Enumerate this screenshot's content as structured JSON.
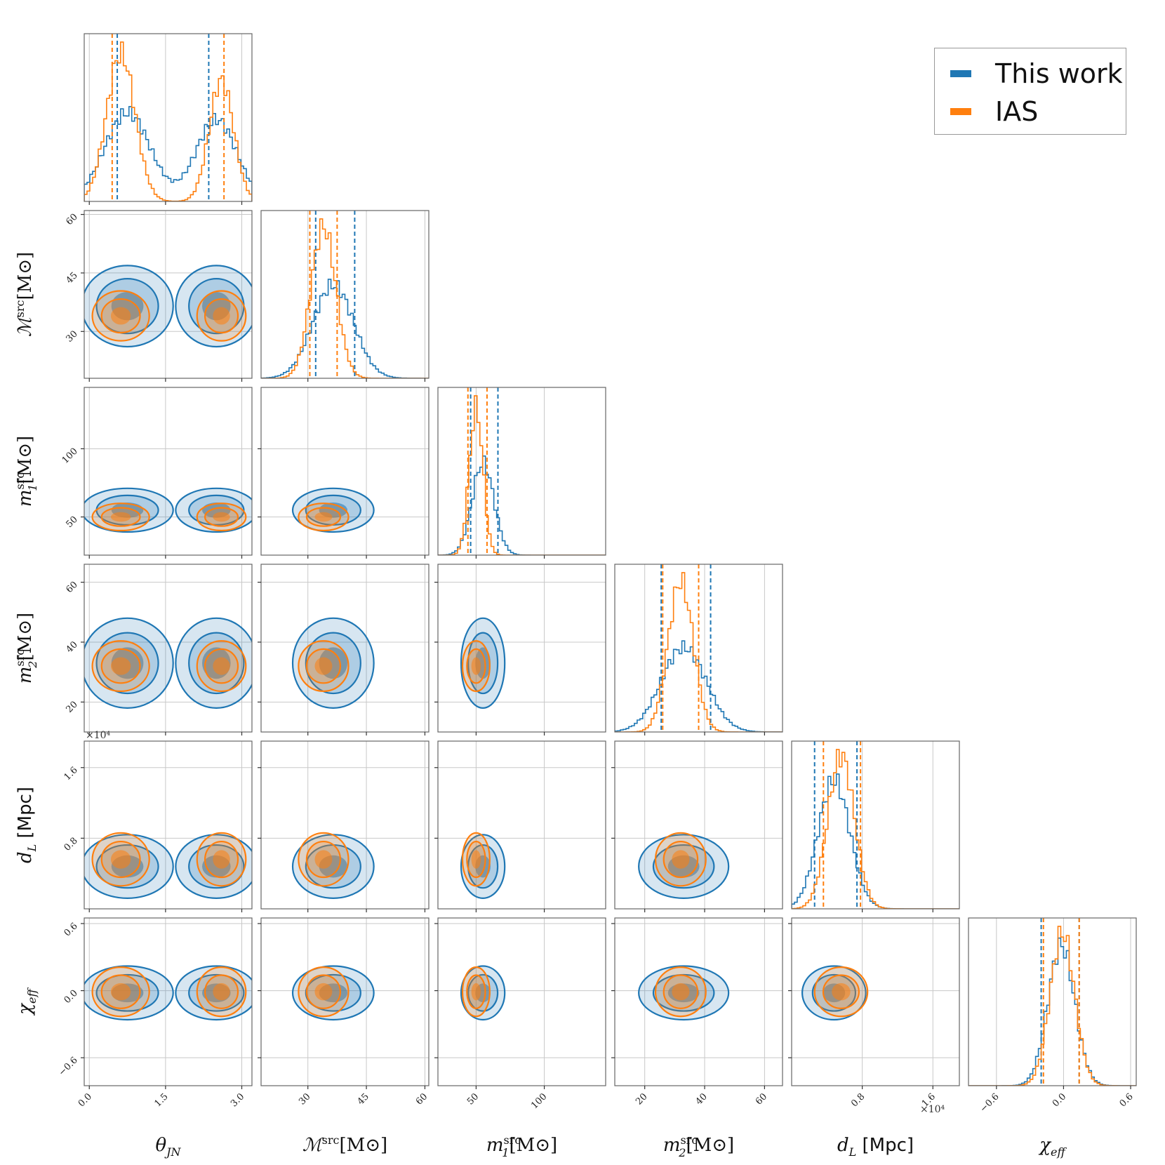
{
  "chart_data": {
    "type": "corner",
    "parameters": [
      {
        "key": "theta",
        "label": "θ",
        "sub": "JN",
        "range": [
          -0.1,
          3.2
        ],
        "ticks": [
          0.0,
          1.5,
          3.0
        ],
        "tick_labels": [
          "0.0",
          "1.5",
          "3.0"
        ]
      },
      {
        "key": "mchirp",
        "label": "ℳ",
        "sup": "src",
        "unit": "[M⊙]",
        "range": [
          18,
          61
        ],
        "ticks": [
          30,
          45,
          60
        ],
        "tick_labels": [
          "30",
          "45",
          "60"
        ]
      },
      {
        "key": "m1",
        "label": "m",
        "sub": "1",
        "sup": "src",
        "unit": "[M⊙]",
        "range": [
          22,
          145
        ],
        "ticks": [
          50,
          100
        ],
        "tick_labels": [
          "50",
          "100"
        ]
      },
      {
        "key": "m2",
        "label": "m",
        "sub": "2",
        "sup": "src",
        "unit": "[M⊙]",
        "range": [
          10,
          66
        ],
        "ticks": [
          20,
          40,
          60
        ],
        "tick_labels": [
          "20",
          "40",
          "60"
        ]
      },
      {
        "key": "dL",
        "label": "d",
        "sub": "L",
        "unit": " [Mpc]",
        "range": [
          0.0,
          1.9
        ],
        "ticks": [
          0.8,
          1.6
        ],
        "tick_labels": [
          "0.8",
          "1.6"
        ],
        "sci": "×10⁴"
      },
      {
        "key": "chi",
        "label": "χ",
        "sub": "eff",
        "range": [
          -0.85,
          0.65
        ],
        "ticks": [
          -0.6,
          0.0,
          0.6
        ],
        "tick_labels": [
          "−0.6",
          "0.0",
          "0.6"
        ]
      }
    ],
    "series": [
      {
        "name": "This work",
        "color": "#1f77b4",
        "quantiles": {
          "theta": [
            0.55,
            2.35
          ],
          "mchirp": [
            32.0,
            42.0
          ],
          "m1": [
            46.0,
            66.0
          ],
          "m2": [
            25.5,
            42.0
          ],
          "dL": [
            0.26,
            0.74
          ],
          "chi": [
            -0.2,
            0.14
          ]
        },
        "params": {
          "theta": {
            "modes": [
              {
                "mu": 0.75,
                "sd": 0.45,
                "w": 0.52
              },
              {
                "mu": 2.5,
                "sd": 0.4,
                "w": 0.48
              }
            ]
          },
          "mchirp": {
            "modes": [
              {
                "mu": 36.5,
                "sd": 5.2,
                "w": 1
              }
            ]
          },
          "m1": {
            "modes": [
              {
                "mu": 55,
                "sd": 8,
                "w": 1
              }
            ]
          },
          "m2": {
            "modes": [
              {
                "mu": 33,
                "sd": 7.5,
                "w": 1
              }
            ]
          },
          "dL": {
            "modes": [
              {
                "mu": 0.48,
                "sd": 0.18,
                "w": 1
              }
            ]
          },
          "chi": {
            "modes": [
              {
                "mu": -0.02,
                "sd": 0.12,
                "w": 1
              }
            ]
          }
        }
      },
      {
        "name": "IAS",
        "color": "#ff7f0e",
        "quantiles": {
          "theta": [
            0.45,
            2.65
          ],
          "mchirp": [
            30.5,
            37.5
          ],
          "m1": [
            44.0,
            58.0
          ],
          "m2": [
            26.0,
            38.0
          ],
          "dL": [
            0.36,
            0.78
          ],
          "chi": [
            -0.18,
            0.14
          ]
        },
        "params": {
          "theta": {
            "modes": [
              {
                "mu": 0.62,
                "sd": 0.28,
                "w": 0.55
              },
              {
                "mu": 2.6,
                "sd": 0.24,
                "w": 0.45
              }
            ]
          },
          "mchirp": {
            "modes": [
              {
                "mu": 34,
                "sd": 3.2,
                "w": 1
              }
            ]
          },
          "m1": {
            "modes": [
              {
                "mu": 50,
                "sd": 5,
                "w": 1
              }
            ]
          },
          "m2": {
            "modes": [
              {
                "mu": 32,
                "sd": 4.2,
                "w": 1
              }
            ]
          },
          "dL": {
            "modes": [
              {
                "mu": 0.56,
                "sd": 0.15,
                "w": 1
              }
            ]
          },
          "chi": {
            "modes": [
              {
                "mu": -0.01,
                "sd": 0.11,
                "w": 1
              }
            ]
          }
        }
      }
    ],
    "legend": {
      "position": "top-right",
      "entries": [
        "This work",
        "IAS"
      ]
    },
    "grid": true
  }
}
